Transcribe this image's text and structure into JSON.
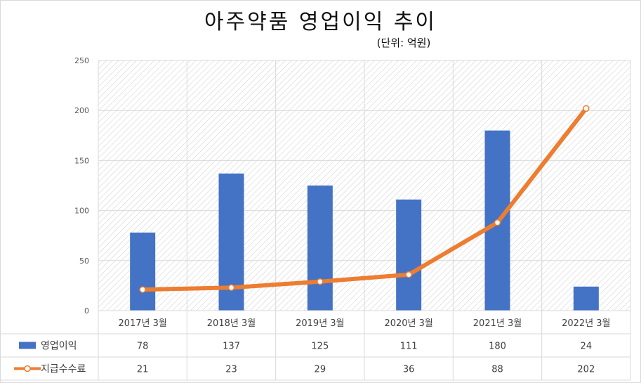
{
  "chart_data": {
    "type": "bar+line",
    "title": "아주약품 영업이익 추이",
    "unit": "(단위: 억원)",
    "categories": [
      "2017년 3월",
      "2018년 3월",
      "2019년 3월",
      "2020년 3월",
      "2021년 3월",
      "2022년 3월"
    ],
    "ylim": [
      0,
      250
    ],
    "yticks": [
      "0",
      "50",
      "100",
      "150",
      "200",
      "250"
    ],
    "grid": true,
    "legend": "data-table-left",
    "series": [
      {
        "name": "영업이익",
        "type": "bar",
        "color": "#4472c4",
        "values": [
          78,
          137,
          125,
          111,
          180,
          24
        ]
      },
      {
        "name": "지급수수료",
        "type": "line",
        "color": "#ed7d31",
        "values": [
          21,
          23,
          29,
          36,
          88,
          202
        ]
      }
    ]
  }
}
